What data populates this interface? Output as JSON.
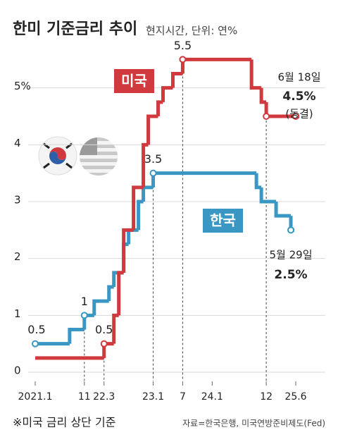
{
  "chart_data": {
    "type": "step",
    "title": "한미 기준금리 추이",
    "subtitle": "현지시간, 단위: 연%",
    "note": "※미국 금리 상단 기준",
    "source": "자료=한국은행, 미국연방준비제도(Fed)",
    "xlim": [
      "2021.01",
      "2025.06"
    ],
    "xticks": [
      {
        "value": "2021.01",
        "label": "2021.1"
      },
      {
        "value": "2021.11",
        "label": "11"
      },
      {
        "value": "2022.03",
        "label": "22.3"
      },
      {
        "value": "2023.01",
        "label": "23.1"
      },
      {
        "value": "2023.07",
        "label": "7"
      },
      {
        "value": "2024.01",
        "label": "24.1"
      },
      {
        "value": "2024.12",
        "label": "12"
      },
      {
        "value": "2025.06",
        "label": "25.6"
      }
    ],
    "ylim": [
      0,
      6
    ],
    "yticks": [
      0,
      1,
      2,
      3,
      4,
      {
        "value": 5,
        "label": "5%"
      }
    ],
    "grid": true,
    "series": [
      {
        "name": "한국",
        "color": "#3a97c3",
        "x": [
          "2021.01",
          "2021.08",
          "2021.11",
          "2022.01",
          "2022.04",
          "2022.05",
          "2022.07",
          "2022.08",
          "2022.10",
          "2022.11",
          "2023.01",
          "2024.10",
          "2024.11",
          "2025.02",
          "2025.05"
        ],
        "values": [
          0.5,
          0.75,
          1,
          1.25,
          1.5,
          1.75,
          2.25,
          2.5,
          3,
          3.25,
          3.5,
          3.25,
          3,
          2.75,
          2.5
        ],
        "value_labels": [
          "0.5",
          null,
          "1",
          null,
          null,
          null,
          null,
          null,
          null,
          null,
          "3.5",
          null,
          null,
          null,
          null
        ],
        "markers": [
          0,
          2,
          10,
          14
        ],
        "droplines": [
          2,
          10
        ]
      },
      {
        "name": "미국",
        "color": "#d0393e",
        "x": [
          "2021.01",
          "2022.03",
          "2022.05",
          "2022.06",
          "2022.07",
          "2022.09",
          "2022.11",
          "2022.12",
          "2023.02",
          "2023.03",
          "2023.05",
          "2023.07",
          "2024.09",
          "2024.11",
          "2024.12",
          "2025.06"
        ],
        "values": [
          0.25,
          0.5,
          1,
          1.75,
          2.5,
          3.25,
          4,
          4.5,
          4.75,
          5,
          5.25,
          5.5,
          5,
          4.75,
          4.5,
          4.5
        ],
        "value_labels": [
          null,
          "0.5",
          null,
          null,
          null,
          null,
          null,
          null,
          null,
          null,
          null,
          "5.5",
          null,
          null,
          null,
          null
        ],
        "markers": [
          1,
          11,
          14,
          15
        ],
        "droplines": [
          1,
          11,
          14
        ]
      }
    ],
    "annotations": [
      "6월 18일",
      "4.5%",
      "(동결)",
      "5월 29일",
      "2.5%"
    ]
  }
}
